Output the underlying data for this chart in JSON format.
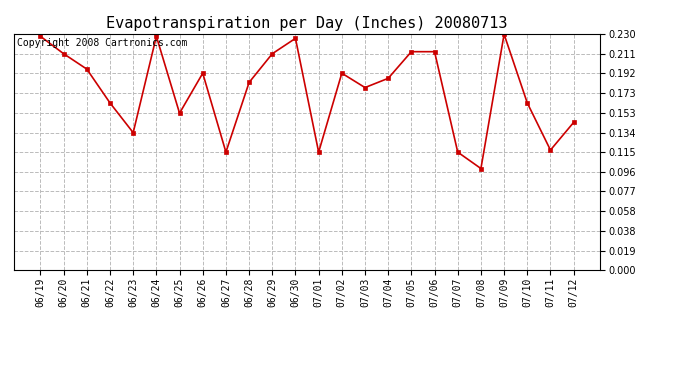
{
  "title": "Evapotranspiration per Day (Inches) 20080713",
  "copyright_text": "Copyright 2008 Cartronics.com",
  "dates": [
    "06/19",
    "06/20",
    "06/21",
    "06/22",
    "06/23",
    "06/24",
    "06/25",
    "06/26",
    "06/27",
    "06/28",
    "06/29",
    "06/30",
    "07/01",
    "07/02",
    "07/03",
    "07/04",
    "07/05",
    "07/06",
    "07/07",
    "07/08",
    "07/09",
    "07/10",
    "07/11",
    "07/12"
  ],
  "values": [
    0.228,
    0.211,
    0.196,
    0.163,
    0.134,
    0.228,
    0.153,
    0.192,
    0.115,
    0.183,
    0.211,
    0.226,
    0.115,
    0.192,
    0.178,
    0.187,
    0.213,
    0.213,
    0.115,
    0.099,
    0.23,
    0.163,
    0.117,
    0.144
  ],
  "line_color": "#cc0000",
  "marker_color": "#cc0000",
  "bg_color": "#ffffff",
  "grid_color": "#bbbbbb",
  "ylim_min": 0.0,
  "ylim_max": 0.23,
  "yticks": [
    0.0,
    0.019,
    0.038,
    0.058,
    0.077,
    0.096,
    0.115,
    0.134,
    0.153,
    0.173,
    0.192,
    0.211,
    0.23
  ],
  "title_fontsize": 11,
  "tick_fontsize": 7,
  "copyright_fontsize": 7
}
